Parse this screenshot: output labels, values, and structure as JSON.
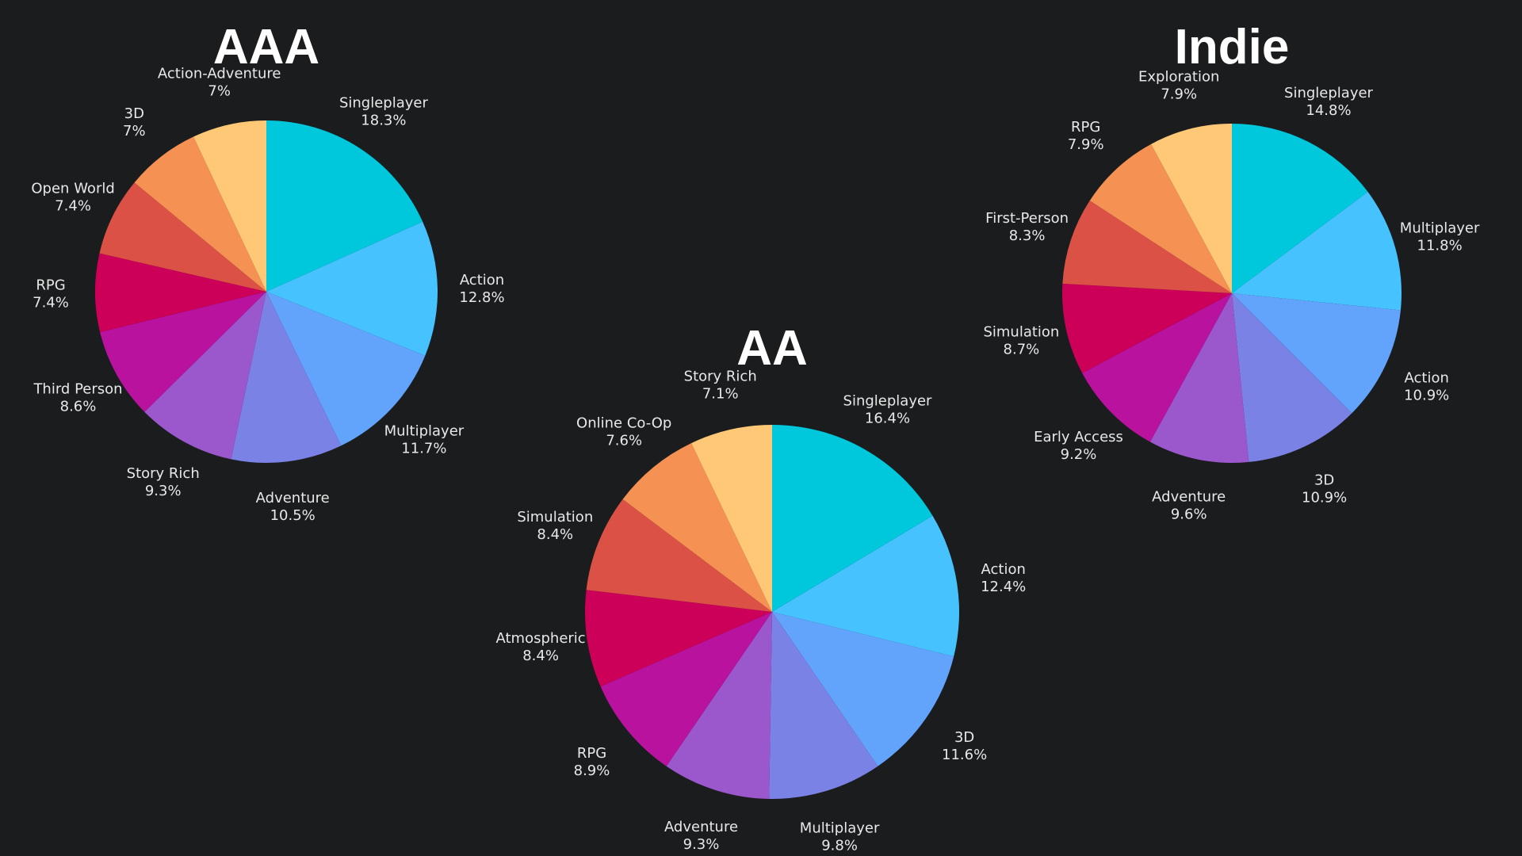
{
  "chart_data": [
    {
      "type": "pie",
      "title": "AAA",
      "slices": [
        {
          "label": "Singleplayer",
          "value": 18.3,
          "display": "18.3%",
          "color": "#00c8dc"
        },
        {
          "label": "Action",
          "value": 12.8,
          "display": "12.8%",
          "color": "#46c2ff"
        },
        {
          "label": "Multiplayer",
          "value": 11.7,
          "display": "11.7%",
          "color": "#62a4fb"
        },
        {
          "label": "Adventure",
          "value": 10.5,
          "display": "10.5%",
          "color": "#7b82e6"
        },
        {
          "label": "Story Rich",
          "value": 9.3,
          "display": "9.3%",
          "color": "#9b57cc"
        },
        {
          "label": "Third Person",
          "value": 8.6,
          "display": "8.6%",
          "color": "#b9129e"
        },
        {
          "label": "RPG",
          "value": 7.4,
          "display": "7.4%",
          "color": "#cc0059"
        },
        {
          "label": "Open World",
          "value": 7.4,
          "display": "7.4%",
          "color": "#dc5146"
        },
        {
          "label": "3D",
          "value": 7,
          "display": "7%",
          "color": "#f59152"
        },
        {
          "label": "Action-Adventure",
          "value": 7,
          "display": "7%",
          "color": "#ffc877"
        }
      ]
    },
    {
      "type": "pie",
      "title": "AA",
      "slices": [
        {
          "label": "Singleplayer",
          "value": 16.4,
          "display": "16.4%",
          "color": "#00c8dc"
        },
        {
          "label": "Action",
          "value": 12.4,
          "display": "12.4%",
          "color": "#46c2ff"
        },
        {
          "label": "3D",
          "value": 11.6,
          "display": "11.6%",
          "color": "#62a4fb"
        },
        {
          "label": "Multiplayer",
          "value": 9.8,
          "display": "9.8%",
          "color": "#7b82e6"
        },
        {
          "label": "Adventure",
          "value": 9.3,
          "display": "9.3%",
          "color": "#9b57cc"
        },
        {
          "label": "RPG",
          "value": 8.9,
          "display": "8.9%",
          "color": "#b9129e"
        },
        {
          "label": "Atmospheric",
          "value": 8.4,
          "display": "8.4%",
          "color": "#cc0059"
        },
        {
          "label": "Simulation",
          "value": 8.4,
          "display": "8.4%",
          "color": "#dc5146"
        },
        {
          "label": "Online Co-Op",
          "value": 7.6,
          "display": "7.6%",
          "color": "#f59152"
        },
        {
          "label": "Story Rich",
          "value": 7.1,
          "display": "7.1%",
          "color": "#ffc877"
        }
      ]
    },
    {
      "type": "pie",
      "title": "Indie",
      "slices": [
        {
          "label": "Singleplayer",
          "value": 14.8,
          "display": "14.8%",
          "color": "#00c8dc"
        },
        {
          "label": "Multiplayer",
          "value": 11.8,
          "display": "11.8%",
          "color": "#46c2ff"
        },
        {
          "label": "Action",
          "value": 10.9,
          "display": "10.9%",
          "color": "#62a4fb"
        },
        {
          "label": "3D",
          "value": 10.9,
          "display": "10.9%",
          "color": "#7b82e6"
        },
        {
          "label": "Adventure",
          "value": 9.6,
          "display": "9.6%",
          "color": "#9b57cc"
        },
        {
          "label": "Early Access",
          "value": 9.2,
          "display": "9.2%",
          "color": "#b9129e"
        },
        {
          "label": "Simulation",
          "value": 8.7,
          "display": "8.7%",
          "color": "#cc0059"
        },
        {
          "label": "First-Person",
          "value": 8.3,
          "display": "8.3%",
          "color": "#dc5146"
        },
        {
          "label": "RPG",
          "value": 7.9,
          "display": "7.9%",
          "color": "#f59152"
        },
        {
          "label": "Exploration",
          "value": 7.9,
          "display": "7.9%",
          "color": "#ffc877"
        }
      ]
    }
  ]
}
